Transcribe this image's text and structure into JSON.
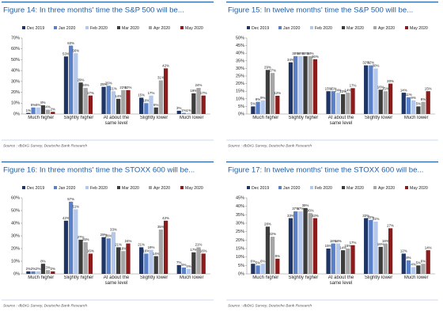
{
  "chart_data": [
    {
      "type": "bar",
      "title": "Figure 14: In three months' time the S&P 500 will be...",
      "source": "Source : dbDIG Survey, Deutsche Bank Research",
      "categories": [
        "Much higher",
        "Slightly higher",
        "At about the same level",
        "Slightly lower",
        "Much lower"
      ],
      "ylim": [
        0,
        70
      ],
      "yticks": [
        {
          "value": 0,
          "label": "0%"
        },
        {
          "value": 10,
          "label": "10%"
        },
        {
          "value": 20,
          "label": "20%"
        },
        {
          "value": 30,
          "label": "30%"
        },
        {
          "value": 40,
          "label": "40%"
        },
        {
          "value": 50,
          "label": "50%"
        },
        {
          "value": 60,
          "label": "60%"
        },
        {
          "value": 70,
          "label": "70%"
        }
      ],
      "series": [
        {
          "name": "Dec 2019",
          "color": "#1f3566",
          "values": [
            1,
            53,
            25,
            15,
            3
          ],
          "value_labels": [
            "1%",
            "53%",
            "25%",
            "15%",
            "3%"
          ]
        },
        {
          "name": "Jan 2020",
          "color": "#5a80c8",
          "values": [
            6,
            63,
            26,
            10,
            1
          ],
          "value_labels": [
            "6%",
            "63%",
            "26%",
            "10%",
            "1%"
          ]
        },
        {
          "name": "Feb 2020",
          "color": "#b3c8ec",
          "values": [
            6,
            56,
            21,
            17,
            1
          ],
          "value_labels": [
            "6%",
            "56%",
            "21%",
            "17%",
            "1%"
          ]
        },
        {
          "name": "Mar 2020",
          "color": "#3d3d3d",
          "values": [
            8,
            29,
            14,
            6,
            19
          ],
          "value_labels": [
            "8%",
            "29%",
            "14%",
            "6%",
            "19%"
          ]
        },
        {
          "name": "Apr 2020",
          "color": "#a6a6a6",
          "values": [
            4,
            24,
            22,
            31,
            24
          ],
          "value_labels": [
            "4%",
            "24%",
            "22%",
            "31%",
            "24%"
          ]
        },
        {
          "name": "May 2020",
          "color": "#8c1c1c",
          "values": [
            2,
            17,
            22,
            42,
            17
          ],
          "value_labels": [
            "2%",
            "17%",
            "22%",
            "42%",
            "17%"
          ]
        }
      ]
    },
    {
      "type": "bar",
      "title": "Figure 15: In twelve months' time the S&P 500 will be...",
      "source": "Source : dbDIG Survey, Deutsche Bank Research",
      "categories": [
        "Much higher",
        "Slightly higher",
        "At about the same level",
        "Slightly lower",
        "Much lower"
      ],
      "ylim": [
        0,
        50
      ],
      "yticks": [
        {
          "value": 0,
          "label": "0%"
        },
        {
          "value": 5,
          "label": "5%"
        },
        {
          "value": 10,
          "label": "10%"
        },
        {
          "value": 15,
          "label": "15%"
        },
        {
          "value": 20,
          "label": "20%"
        },
        {
          "value": 25,
          "label": "25%"
        },
        {
          "value": 30,
          "label": "30%"
        },
        {
          "value": 35,
          "label": "35%"
        },
        {
          "value": 40,
          "label": "40%"
        },
        {
          "value": 45,
          "label": "45%"
        },
        {
          "value": 50,
          "label": "50%"
        }
      ],
      "series": [
        {
          "name": "Dec 2019",
          "color": "#1f3566",
          "values": [
            5,
            34,
            15,
            32,
            14
          ],
          "value_labels": [
            "5%",
            "34%",
            "15%",
            "32%",
            "14%"
          ]
        },
        {
          "name": "Jan 2020",
          "color": "#5a80c8",
          "values": [
            8,
            38,
            15,
            32,
            11
          ],
          "value_labels": [
            "8%",
            "38%",
            "15%",
            "32%",
            "11%"
          ]
        },
        {
          "name": "Feb 2020",
          "color": "#b3c8ec",
          "values": [
            9,
            38,
            14,
            30,
            9
          ],
          "value_labels": [
            "9%",
            "38%",
            "14%",
            "30%",
            "9%"
          ]
        },
        {
          "name": "Mar 2020",
          "color": "#3d3d3d",
          "values": [
            29,
            38,
            13,
            16,
            5
          ],
          "value_labels": [
            "29%",
            "38%",
            "13%",
            "16%",
            "5%"
          ]
        },
        {
          "name": "Apr 2020",
          "color": "#a6a6a6",
          "values": [
            27,
            38,
            14,
            15,
            8
          ],
          "value_labels": [
            "27%",
            "38%",
            "14%",
            "15%",
            "8%"
          ]
        },
        {
          "name": "May 2020",
          "color": "#8c1c1c",
          "values": [
            12,
            36,
            17,
            20,
            15
          ],
          "value_labels": [
            "12%",
            "36%",
            "17%",
            "20%",
            "15%"
          ]
        }
      ]
    },
    {
      "type": "bar",
      "title": "Figure 16: In three months' time the STOXX 600 will be...",
      "source": "Source : dbDIG Survey, Deutsche Bank Research",
      "categories": [
        "Much higher",
        "Slightly higher",
        "At about the same level",
        "Slightly lower",
        "Much lower"
      ],
      "ylim": [
        0,
        60
      ],
      "yticks": [
        {
          "value": 0,
          "label": "0%"
        },
        {
          "value": 10,
          "label": "10%"
        },
        {
          "value": 20,
          "label": "20%"
        },
        {
          "value": 30,
          "label": "30%"
        },
        {
          "value": 40,
          "label": "40%"
        },
        {
          "value": 50,
          "label": "50%"
        },
        {
          "value": 60,
          "label": "60%"
        }
      ],
      "series": [
        {
          "name": "Dec 2019",
          "color": "#1f3566",
          "values": [
            2,
            42,
            29,
            21,
            7
          ],
          "value_labels": [
            "2%",
            "42%",
            "29%",
            "21%",
            "7%"
          ]
        },
        {
          "name": "Jan 2020",
          "color": "#5a80c8",
          "values": [
            2,
            57,
            28,
            16,
            5
          ],
          "value_labels": [
            "2%",
            "57%",
            "28%",
            "16%",
            "5%"
          ]
        },
        {
          "name": "Feb 2020",
          "color": "#b3c8ec",
          "values": [
            2,
            51,
            33,
            19,
            4
          ],
          "value_labels": [
            "2%",
            "51%",
            "33%",
            "19%",
            "4%"
          ]
        },
        {
          "name": "Mar 2020",
          "color": "#3d3d3d",
          "values": [
            8,
            27,
            21,
            14,
            17
          ],
          "value_labels": [
            "8%",
            "27%",
            "21%",
            "14%",
            "17%"
          ]
        },
        {
          "name": "Apr 2020",
          "color": "#a6a6a6",
          "values": [
            3,
            25,
            18,
            35,
            21
          ],
          "value_labels": [
            "3%",
            "25%",
            "18%",
            "35%",
            "21%"
          ]
        },
        {
          "name": "May 2020",
          "color": "#8c1c1c",
          "values": [
            2,
            16,
            24,
            42,
            16
          ],
          "value_labels": [
            "2%",
            "16%",
            "24%",
            "42%",
            "16%"
          ]
        }
      ]
    },
    {
      "type": "bar",
      "title": "Figure 17: In twelve months' time the STOXX 600 will be...",
      "source": "Source : dbDIG Survey, Deutsche Bank Research",
      "categories": [
        "Much higher",
        "Slightly higher",
        "At about the same level",
        "Slightly lower",
        "Much lower"
      ],
      "ylim": [
        0,
        45
      ],
      "yticks": [
        {
          "value": 0,
          "label": "0%"
        },
        {
          "value": 5,
          "label": "5%"
        },
        {
          "value": 10,
          "label": "10%"
        },
        {
          "value": 15,
          "label": "15%"
        },
        {
          "value": 20,
          "label": "20%"
        },
        {
          "value": 25,
          "label": "25%"
        },
        {
          "value": 30,
          "label": "30%"
        },
        {
          "value": 35,
          "label": "35%"
        },
        {
          "value": 40,
          "label": "40%"
        },
        {
          "value": 45,
          "label": "45%"
        }
      ],
      "series": [
        {
          "name": "Dec 2019",
          "color": "#1f3566",
          "values": [
            6,
            33,
            15,
            33,
            12
          ],
          "value_labels": [
            "6%",
            "33%",
            "15%",
            "33%",
            "12%"
          ]
        },
        {
          "name": "Jan 2020",
          "color": "#5a80c8",
          "values": [
            5,
            37,
            18,
            32,
            8
          ],
          "value_labels": [
            "5%",
            "37%",
            "18%",
            "32%",
            "8%"
          ]
        },
        {
          "name": "Feb 2020",
          "color": "#b3c8ec",
          "values": [
            6,
            37,
            18,
            31,
            4
          ],
          "value_labels": [
            "6%",
            "37%",
            "18%",
            "31%",
            "4%"
          ]
        },
        {
          "name": "Mar 2020",
          "color": "#3d3d3d",
          "values": [
            28,
            39,
            14,
            16,
            5
          ],
          "value_labels": [
            "28%",
            "39%",
            "14%",
            "16%",
            "5%"
          ]
        },
        {
          "name": "Apr 2020",
          "color": "#a6a6a6",
          "values": [
            22,
            36,
            15,
            18,
            6
          ],
          "value_labels": [
            "22%",
            "36%",
            "15%",
            "18%",
            "6%"
          ]
        },
        {
          "name": "May 2020",
          "color": "#8c1c1c",
          "values": [
            9,
            33,
            17,
            27,
            14
          ],
          "value_labels": [
            "9%",
            "33%",
            "17%",
            "27%",
            "14%"
          ]
        }
      ]
    }
  ]
}
